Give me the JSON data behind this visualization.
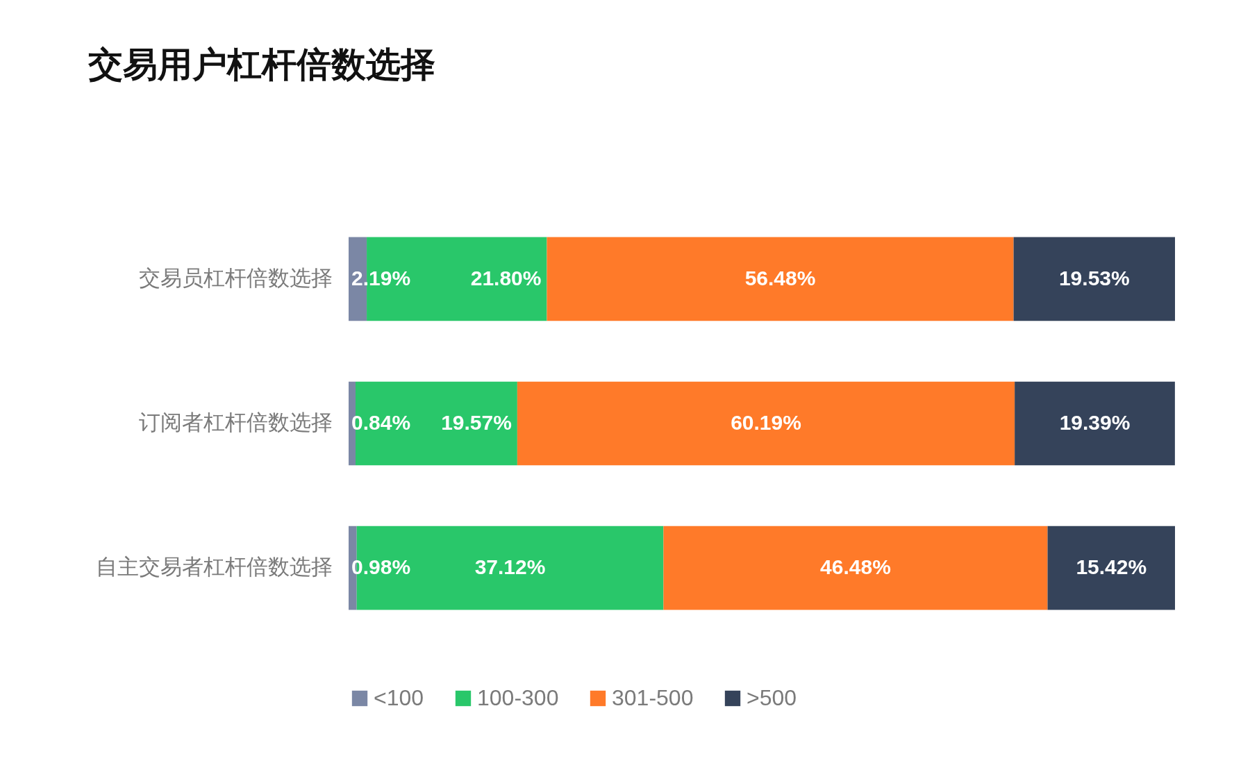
{
  "chart_data": {
    "type": "bar",
    "orientation": "horizontal",
    "stacked": true,
    "title": "交易用户杠杆倍数选择",
    "categories": [
      "交易员杠杆倍数选择",
      "订阅者杠杆倍数选择",
      "自主交易者杠杆倍数选择"
    ],
    "series": [
      {
        "name": "<100",
        "color": "#7b87a5",
        "values": [
          2.19,
          0.84,
          0.98
        ],
        "value_labels": [
          "2.19%",
          "0.84%",
          "0.98%"
        ]
      },
      {
        "name": "100-300",
        "color": "#29c76a",
        "values": [
          21.8,
          19.57,
          37.12
        ],
        "value_labels": [
          "21.80%",
          "19.57%",
          "37.12%"
        ]
      },
      {
        "name": "301-500",
        "color": "#ff7a29",
        "values": [
          56.48,
          60.19,
          46.48
        ],
        "value_labels": [
          "56.48%",
          "60.19%",
          "46.48%"
        ]
      },
      {
        "name": ">500",
        "color": "#35435a",
        "values": [
          19.53,
          19.39,
          15.42
        ],
        "value_labels": [
          "19.53%",
          "19.39%",
          "15.42%"
        ]
      }
    ],
    "legend": "bottom"
  }
}
